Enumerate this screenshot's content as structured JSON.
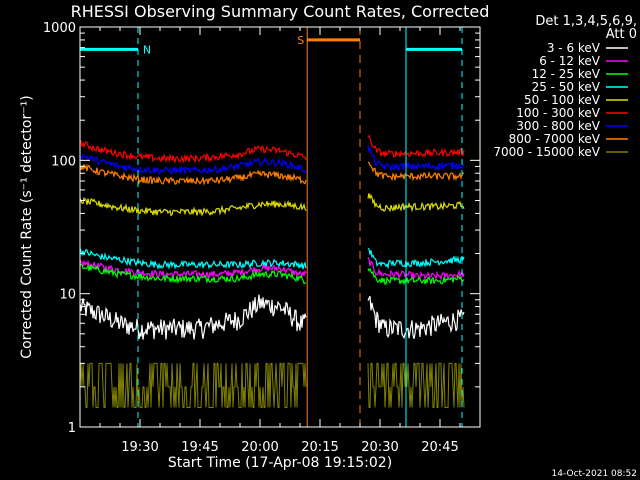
{
  "chart_data": {
    "type": "line",
    "title": "RHESSI Observing Summary Count Rates, Corrected",
    "xlabel": "Start Time (17-Apr-08 19:15:02)",
    "ylabel": "Corrected Count Rate (s⁻¹ detector⁻¹)",
    "x_units": "minutes after 19:15:02",
    "xlim": [
      0,
      100
    ],
    "ylim": [
      1,
      1000
    ],
    "y_scale": "log",
    "grid": false,
    "legend_placement": "right, outside plot",
    "legend_title": [
      "Det 1,3,4,5,6,9,",
      "Att 0"
    ],
    "x_ticks": [
      {
        "x": 15,
        "label": "19:30"
      },
      {
        "x": 30,
        "label": "19:45"
      },
      {
        "x": 45,
        "label": "20:00"
      },
      {
        "x": 60,
        "label": "20:15"
      },
      {
        "x": 75,
        "label": "20:30"
      },
      {
        "x": 90,
        "label": "20:45"
      }
    ],
    "y_ticks": [
      {
        "y": 1,
        "label": "1"
      },
      {
        "y": 10,
        "label": "10"
      },
      {
        "y": 100,
        "label": "100"
      },
      {
        "y": 1000,
        "label": "1000"
      }
    ],
    "colors": {
      "night": "#00ffff",
      "saa": "#ff8000",
      "axes": "#ffffff",
      "background": "#000000"
    },
    "flags": [
      {
        "label": "N",
        "x_start": 0,
        "x_end": 14.5,
        "y": 680,
        "color": "#00ffff"
      },
      {
        "label": "S",
        "x_start": 56.8,
        "x_end": 70.0,
        "y": 800,
        "color": "#ff8000"
      },
      {
        "x_start": 81.5,
        "x_end": 95.5,
        "y": 680,
        "color": "#00ffff"
      }
    ],
    "night_lines": [
      {
        "x": 0,
        "style": "solid"
      },
      {
        "x": 14.5,
        "style": "dashed"
      },
      {
        "x": 81.5,
        "style": "solid"
      },
      {
        "x": 95.5,
        "style": "dashed"
      }
    ],
    "saa_lines": [
      {
        "x": 56.8,
        "style": "solid"
      },
      {
        "x": 70.0,
        "style": "dashed"
      }
    ],
    "x_segment_1": [
      0,
      5,
      10,
      15,
      20,
      25,
      30,
      35,
      40,
      45,
      50,
      55,
      56.5
    ],
    "x_segment_2": [
      72,
      74,
      76,
      78,
      80,
      85,
      90,
      95,
      96
    ],
    "series": [
      {
        "name": "3 - 6 keV",
        "color": "#ffffff",
        "seg1": [
          8,
          7,
          6,
          5.5,
          5.5,
          5.5,
          5.5,
          6,
          6.5,
          8.5,
          8,
          6,
          6
        ],
        "seg2": [
          9,
          6.5,
          5.5,
          5.5,
          5.5,
          5.5,
          6,
          6.5,
          6.5
        ]
      },
      {
        "name": "6 - 12 keV",
        "color": "#ff00ff",
        "seg1": [
          17,
          16,
          15,
          14.5,
          14,
          14,
          14,
          14,
          14.5,
          15.5,
          15.5,
          14,
          14
        ],
        "seg2": [
          18,
          14.5,
          14,
          14,
          14,
          13.5,
          13.5,
          14,
          14
        ]
      },
      {
        "name": "12 - 25 keV",
        "color": "#00ff00",
        "seg1": [
          16,
          15,
          14,
          13.5,
          13,
          13,
          13,
          13,
          13,
          14,
          14,
          13,
          12.5
        ],
        "seg2": [
          16,
          13,
          12.5,
          12.5,
          12.5,
          12.5,
          12.5,
          13,
          13
        ]
      },
      {
        "name": "25 - 50 keV",
        "color": "#00ffff",
        "seg1": [
          21,
          19,
          18,
          17,
          16.5,
          16.5,
          16.5,
          16.5,
          16.5,
          17,
          17,
          16.5,
          16
        ],
        "seg2": [
          22,
          17,
          16.5,
          17,
          17,
          17,
          17.5,
          18,
          18
        ]
      },
      {
        "name": "50 - 100 keV",
        "color": "#dddd00",
        "seg1": [
          50,
          47,
          44,
          42,
          41,
          41,
          41,
          42,
          44,
          47,
          47,
          45,
          44
        ],
        "seg2": [
          55,
          46,
          44,
          44,
          45,
          45,
          45,
          46,
          46
        ]
      },
      {
        "name": "100 - 300 keV",
        "color": "#ff0000",
        "seg1": [
          135,
          120,
          112,
          106,
          103,
          103,
          104,
          107,
          112,
          122,
          118,
          108,
          104
        ],
        "seg2": [
          150,
          118,
          112,
          112,
          113,
          113,
          114,
          115,
          115
        ]
      },
      {
        "name": "300 - 800 keV",
        "color": "#0000ff",
        "seg1": [
          110,
          98,
          90,
          86,
          84,
          84,
          84,
          86,
          91,
          98,
          96,
          88,
          84
        ],
        "seg2": [
          125,
          95,
          90,
          89,
          90,
          90,
          91,
          92,
          92
        ]
      },
      {
        "name": "800 - 7000 keV",
        "color": "#ff8000",
        "seg1": [
          90,
          82,
          76,
          72,
          70,
          70,
          70,
          71,
          74,
          79,
          77,
          72,
          70
        ],
        "seg2": [
          100,
          80,
          76,
          75,
          76,
          76,
          76,
          76,
          76
        ]
      },
      {
        "name": "7000 - 15000 keV",
        "color": "#808000",
        "seg1": [
          3,
          2,
          2,
          2,
          2,
          2,
          2,
          2,
          3,
          3,
          3,
          2,
          2
        ],
        "seg2": [
          3,
          2,
          2,
          2,
          2,
          2,
          2,
          2,
          3
        ]
      }
    ]
  },
  "footer": {
    "timestamp": "14-Oct-2021 08:52"
  }
}
